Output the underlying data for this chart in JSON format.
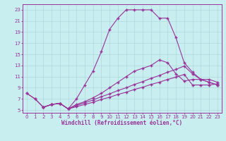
{
  "xlabel": "Windchill (Refroidissement éolien,°C)",
  "bg_color": "#c8eef0",
  "grid_color": "#b0d8dc",
  "line_color": "#993399",
  "xlim": [
    -0.5,
    23.5
  ],
  "ylim": [
    4.5,
    24.0
  ],
  "xticks": [
    0,
    1,
    2,
    3,
    4,
    5,
    6,
    7,
    8,
    9,
    10,
    11,
    12,
    13,
    14,
    15,
    16,
    17,
    18,
    19,
    20,
    21,
    22,
    23
  ],
  "yticks": [
    5,
    7,
    9,
    11,
    13,
    15,
    17,
    19,
    21,
    23
  ],
  "curve1_x": [
    0,
    1,
    2,
    3,
    4,
    5,
    6,
    7,
    8,
    9,
    10,
    11,
    12,
    13,
    14,
    15,
    16,
    17,
    18,
    19,
    20,
    21,
    22,
    23
  ],
  "curve1_y": [
    8.0,
    7.0,
    5.5,
    6.0,
    6.2,
    5.2,
    7.0,
    9.5,
    12.0,
    15.5,
    19.5,
    21.5,
    23.0,
    23.0,
    23.0,
    23.0,
    21.5,
    21.5,
    18.0,
    13.5,
    11.8,
    10.5,
    10.5,
    10.0
  ],
  "curve2_x": [
    0,
    1,
    2,
    3,
    4,
    5,
    6,
    7,
    8,
    9,
    10,
    11,
    12,
    13,
    14,
    15,
    16,
    17,
    18,
    19,
    20,
    21,
    22,
    23
  ],
  "curve2_y": [
    8.0,
    7.0,
    5.5,
    6.0,
    6.2,
    5.2,
    6.0,
    6.5,
    7.2,
    8.0,
    9.0,
    10.0,
    11.0,
    12.0,
    12.5,
    13.0,
    14.0,
    13.5,
    11.5,
    10.2,
    10.5,
    10.5,
    10.0,
    9.5
  ],
  "curve3_x": [
    2,
    3,
    4,
    5,
    6,
    7,
    8,
    9,
    10,
    11,
    12,
    13,
    14,
    15,
    16,
    17,
    18,
    19,
    20,
    21,
    22,
    23
  ],
  "curve3_y": [
    5.5,
    6.0,
    6.2,
    5.2,
    5.8,
    6.3,
    6.8,
    7.4,
    7.9,
    8.5,
    9.0,
    9.6,
    10.1,
    10.7,
    11.2,
    11.8,
    12.3,
    12.9,
    11.5,
    10.5,
    10.0,
    9.5
  ],
  "curve4_x": [
    2,
    3,
    4,
    5,
    6,
    7,
    8,
    9,
    10,
    11,
    12,
    13,
    14,
    15,
    16,
    17,
    18,
    19,
    20,
    21,
    22,
    23
  ],
  "curve4_y": [
    5.5,
    6.0,
    6.2,
    5.2,
    5.6,
    6.0,
    6.4,
    6.9,
    7.3,
    7.8,
    8.2,
    8.7,
    9.1,
    9.6,
    10.0,
    10.5,
    10.9,
    11.4,
    9.5,
    9.5,
    9.5,
    9.7
  ]
}
